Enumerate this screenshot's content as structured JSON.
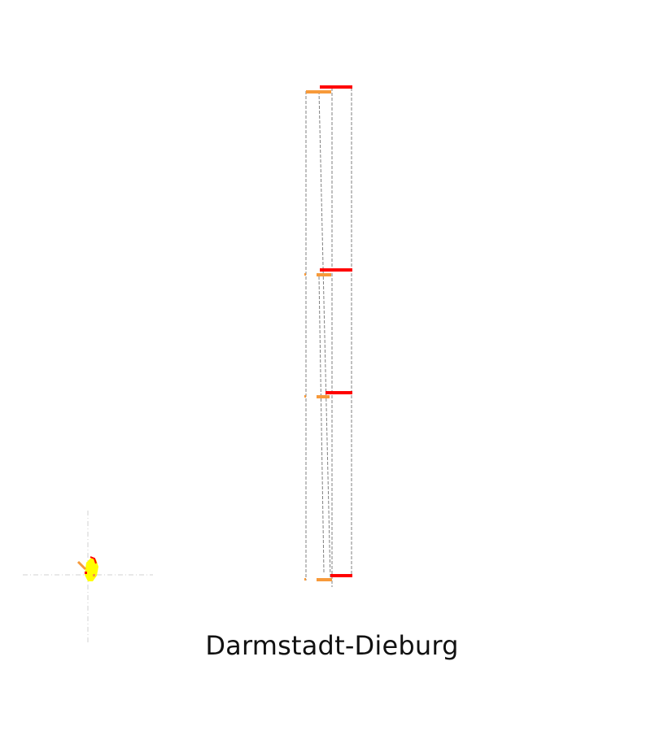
{
  "map": {
    "region_name": "Darmstadt-Dieburg",
    "colors": {
      "red": "#ff0000",
      "orange": "#f79a3a",
      "yellow": "#ffff00",
      "dashed_line": "#808080",
      "crosshair": "#d0d0d0"
    }
  }
}
